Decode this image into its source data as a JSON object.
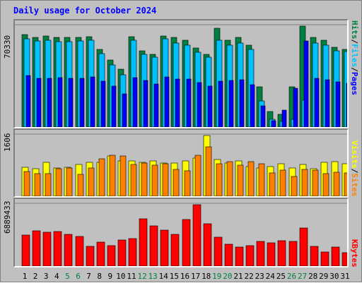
{
  "title": "Daily usage for October 2024",
  "colors": {
    "background": "#c0c0c0",
    "title": "#0000ff",
    "hits": "#008040",
    "files": "#00c0ff",
    "pages": "#0000ff",
    "visits": "#ffff00",
    "sites": "#ff8000",
    "kbytes": "#ff0000",
    "weekend_label": "#008040",
    "weekday_label": "#000000"
  },
  "legend": {
    "pages": "Pages",
    "files": "Files",
    "hits": "Hits",
    "sites": "Sites",
    "visits": "Visits",
    "kbytes": "KBytes",
    "slash": "/"
  },
  "chart_data": [
    {
      "type": "bar",
      "title": "Daily usage for October 2024",
      "ylabel": "70330",
      "ylim": [
        0,
        70330
      ],
      "categories": [
        "1",
        "2",
        "3",
        "4",
        "5",
        "6",
        "7",
        "8",
        "9",
        "10",
        "11",
        "12",
        "13",
        "14",
        "15",
        "16",
        "17",
        "18",
        "19",
        "20",
        "21",
        "22",
        "23",
        "24",
        "25",
        "26",
        "27",
        "28",
        "29",
        "30",
        "31"
      ],
      "weekend_days": [
        "5",
        "6",
        "12",
        "13",
        "19",
        "20",
        "26",
        "27"
      ],
      "series": [
        {
          "name": "Hits",
          "values": [
            64500,
            62500,
            63500,
            62500,
            62500,
            62500,
            63000,
            54000,
            46500,
            40500,
            63000,
            53000,
            50500,
            63500,
            62500,
            60500,
            55000,
            50500,
            69000,
            60500,
            62500,
            57000,
            28000,
            11000,
            9000,
            28000,
            70330,
            62500,
            60500,
            55500,
            54000
          ]
        },
        {
          "name": "Files",
          "values": [
            61500,
            60000,
            60500,
            59500,
            59500,
            60000,
            60500,
            51000,
            43500,
            36500,
            60500,
            50500,
            48500,
            61500,
            58500,
            57000,
            52000,
            48500,
            60500,
            57000,
            58500,
            54000,
            18000,
            5500,
            4000,
            5500,
            18500,
            58500,
            57000,
            53000,
            52500
          ]
        },
        {
          "name": "Pages",
          "values": [
            36000,
            34000,
            34000,
            34500,
            34000,
            34000,
            35000,
            32000,
            28500,
            23000,
            34500,
            32500,
            30000,
            35000,
            33500,
            33500,
            31000,
            28500,
            32000,
            32500,
            33000,
            29500,
            15000,
            4500,
            12000,
            27000,
            60000,
            34000,
            33000,
            31500,
            30500
          ]
        }
      ]
    },
    {
      "type": "bar",
      "ylabel": "1606",
      "ylim": [
        0,
        1606
      ],
      "categories": [
        "1",
        "2",
        "3",
        "4",
        "5",
        "6",
        "7",
        "8",
        "9",
        "10",
        "11",
        "12",
        "13",
        "14",
        "15",
        "16",
        "17",
        "18",
        "19",
        "20",
        "21",
        "22",
        "23",
        "24",
        "25",
        "26",
        "27",
        "28",
        "29",
        "30",
        "31"
      ],
      "series": [
        {
          "name": "Visits",
          "values": [
            770,
            730,
            890,
            740,
            770,
            840,
            890,
            890,
            1070,
            940,
            930,
            900,
            930,
            880,
            880,
            930,
            1000,
            1606,
            970,
            880,
            935,
            790,
            755,
            790,
            860,
            740,
            840,
            720,
            890,
            920,
            860
          ]
        },
        {
          "name": "Sites",
          "values": [
            660,
            600,
            590,
            730,
            740,
            580,
            750,
            990,
            1080,
            1060,
            840,
            880,
            830,
            850,
            710,
            670,
            1090,
            1300,
            860,
            920,
            830,
            910,
            860,
            610,
            690,
            520,
            710,
            700,
            600,
            640,
            620
          ]
        }
      ]
    },
    {
      "type": "bar",
      "ylabel": "6889433",
      "ylim": [
        0,
        6889433
      ],
      "categories": [
        "1",
        "2",
        "3",
        "4",
        "5",
        "6",
        "7",
        "8",
        "9",
        "10",
        "11",
        "12",
        "13",
        "14",
        "15",
        "16",
        "17",
        "18",
        "19",
        "20",
        "21",
        "22",
        "23",
        "24",
        "25",
        "26",
        "27",
        "28",
        "29",
        "30",
        "31"
      ],
      "series": [
        {
          "name": "KBytes",
          "values": [
            3500000,
            3970000,
            3790000,
            3900000,
            3580000,
            3330000,
            2180000,
            2670000,
            2310000,
            2920000,
            3050000,
            5270000,
            4500000,
            4030000,
            3580000,
            5230000,
            6889433,
            4760000,
            3210000,
            2470000,
            2170000,
            2260000,
            2790000,
            2600000,
            2820000,
            2750000,
            4300000,
            2220000,
            1550000,
            2110000,
            1480000
          ]
        }
      ]
    }
  ]
}
